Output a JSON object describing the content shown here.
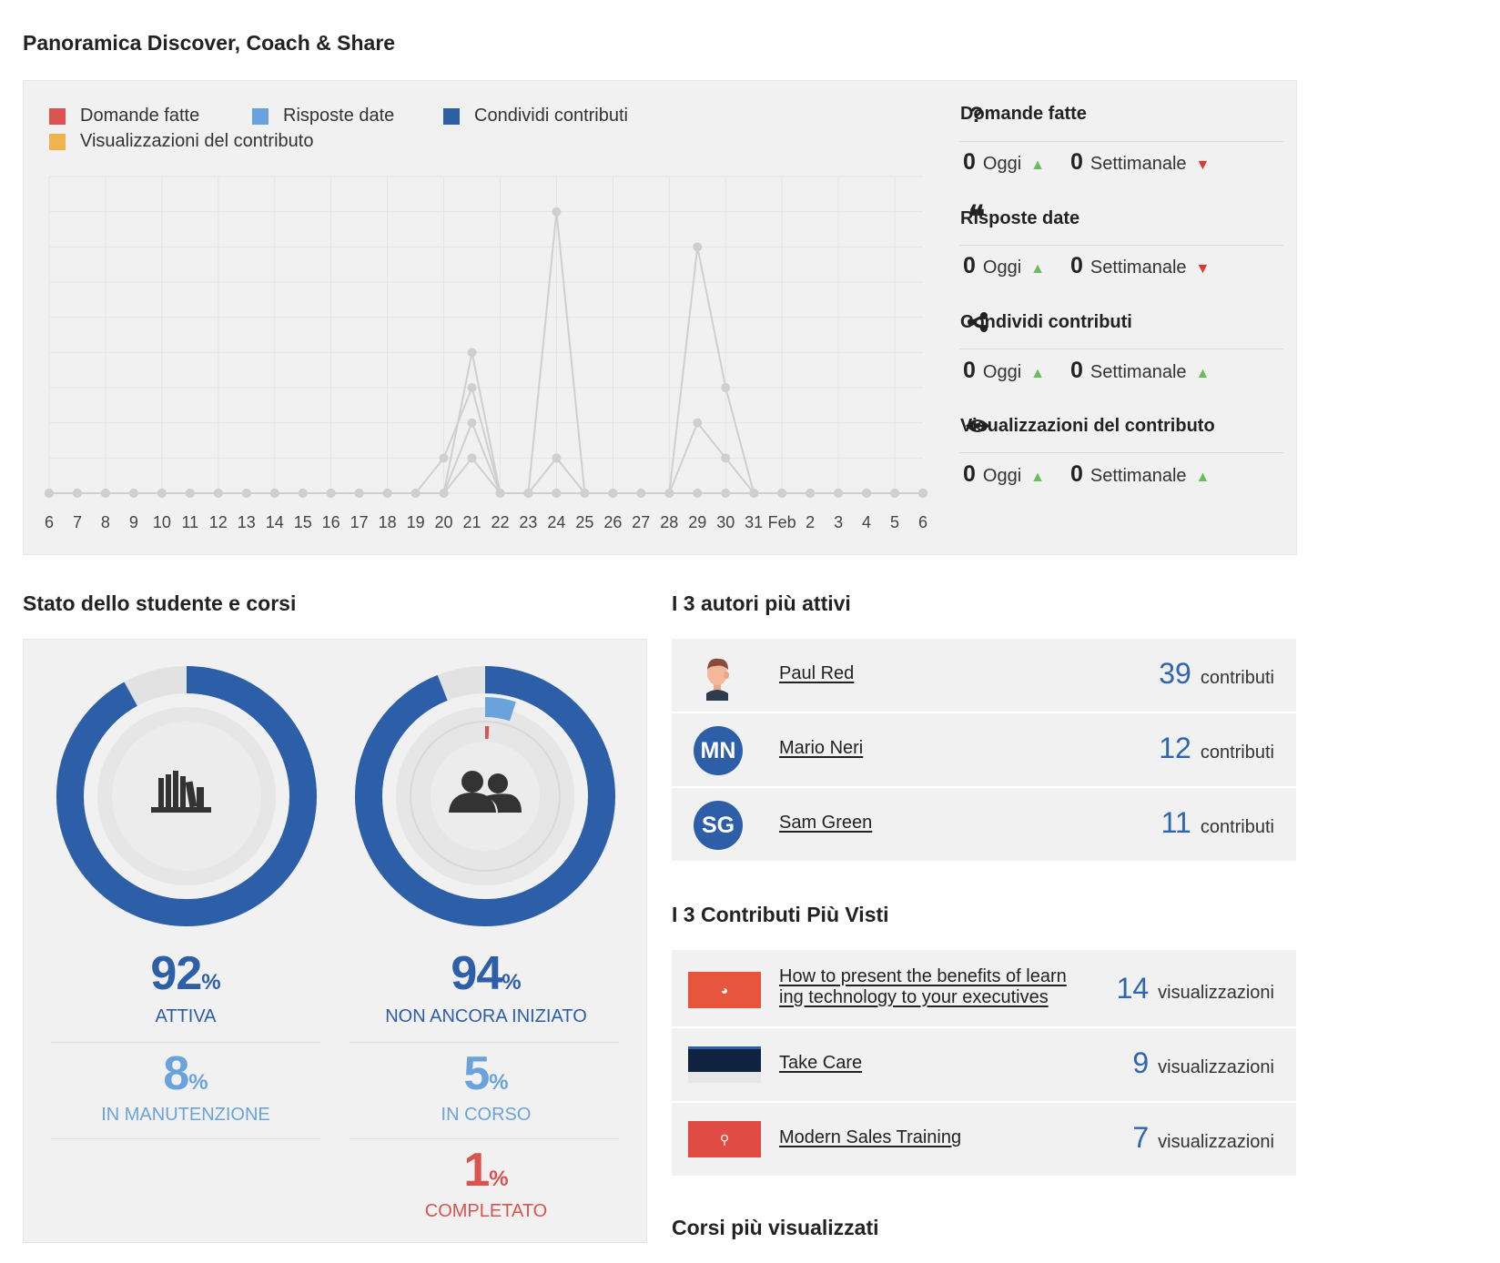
{
  "overview": {
    "title": "Panoramica Discover, Coach & Share",
    "legend": [
      {
        "label": "Domande fatte",
        "color": "#d9534f"
      },
      {
        "label": "Risposte date",
        "color": "#6aa3dc"
      },
      {
        "label": "Condividi contributi",
        "color": "#2c5fa8"
      },
      {
        "label": "Visualizzazioni del contributo",
        "color": "#f0b44d"
      }
    ],
    "stats": [
      {
        "icon": "question-icon",
        "title": "Domande fatte",
        "today": "0",
        "today_label": "Oggi",
        "weekly": "0",
        "weekly_label": "Settimanale",
        "weekly_trend": "down"
      },
      {
        "icon": "quote-icon",
        "title": "Risposte date",
        "today": "0",
        "today_label": "Oggi",
        "weekly": "0",
        "weekly_label": "Settimanale",
        "weekly_trend": "down"
      },
      {
        "icon": "share-icon",
        "title": "Condividi contributi",
        "today": "0",
        "today_label": "Oggi",
        "weekly": "0",
        "weekly_label": "Settimanale",
        "weekly_trend": "up"
      },
      {
        "icon": "eye-icon",
        "title": "Visualizzazioni del contributo",
        "today": "0",
        "today_label": "Oggi",
        "weekly": "0",
        "weekly_label": "Settimanale",
        "weekly_trend": "up"
      }
    ]
  },
  "chart_data": {
    "type": "line",
    "x": [
      "6",
      "7",
      "8",
      "9",
      "10",
      "11",
      "12",
      "13",
      "14",
      "15",
      "16",
      "17",
      "18",
      "19",
      "20",
      "21",
      "22",
      "23",
      "24",
      "25",
      "26",
      "27",
      "28",
      "29",
      "30",
      "31",
      "Feb",
      "2",
      "3",
      "4",
      "5",
      "6"
    ],
    "ylim": [
      0,
      9
    ],
    "grid": true,
    "series": [
      {
        "values": [
          0,
          0,
          0,
          0,
          0,
          0,
          0,
          0,
          0,
          0,
          0,
          0,
          0,
          0,
          0,
          4,
          0,
          0,
          8,
          0,
          0,
          0,
          0,
          7,
          3,
          0,
          0,
          0,
          0,
          0,
          0,
          0
        ]
      },
      {
        "values": [
          0,
          0,
          0,
          0,
          0,
          0,
          0,
          0,
          0,
          0,
          0,
          0,
          0,
          0,
          1,
          3,
          0,
          0,
          1,
          0,
          0,
          0,
          0,
          2,
          1,
          0,
          0,
          0,
          0,
          0,
          0,
          0
        ]
      },
      {
        "values": [
          0,
          0,
          0,
          0,
          0,
          0,
          0,
          0,
          0,
          0,
          0,
          0,
          0,
          0,
          0,
          2,
          0,
          0,
          0,
          0,
          0,
          0,
          0,
          0,
          0,
          0,
          0,
          0,
          0,
          0,
          0,
          0
        ]
      },
      {
        "values": [
          0,
          0,
          0,
          0,
          0,
          0,
          0,
          0,
          0,
          0,
          0,
          0,
          0,
          0,
          0,
          1,
          0,
          0,
          0,
          0,
          0,
          0,
          0,
          0,
          0,
          0,
          0,
          0,
          0,
          0,
          0,
          0
        ]
      }
    ]
  },
  "students": {
    "title": "Stato dello studente e corsi",
    "left": {
      "icon": "books-icon",
      "main_pct": "92",
      "main_label": "ATTIVA",
      "main_color": "#2c5fa8",
      "second_pct": "8",
      "second_label": "IN MANUTENZIONE",
      "second_color": "#6aa3dc"
    },
    "right": {
      "icon": "users-icon",
      "main_pct": "94",
      "main_label": "NON ANCORA INIZIATO",
      "main_color": "#2c5fa8",
      "second_pct": "5",
      "second_label": "IN CORSO",
      "second_color": "#6aa3dc",
      "third_pct": "1",
      "third_label": "COMPLETATO",
      "third_color": "#d9534f"
    },
    "pct_symbol": "%"
  },
  "authors": {
    "title": "I 3 autori più attivi",
    "unit": "contributi",
    "items": [
      {
        "name": "Paul Red",
        "initials": "",
        "count": "39"
      },
      {
        "name": "Mario Neri",
        "initials": "MN",
        "count": "12"
      },
      {
        "name": "Sam Green",
        "initials": "SG",
        "count": "11"
      }
    ]
  },
  "contributions": {
    "title": "I 3 Contributi Più Visti",
    "unit": "visualizzazioni",
    "items": [
      {
        "title_line1": "How to present the benefits of learn",
        "title_line2": "ing technology to your executives",
        "count": "14",
        "thumb": "presentation-icon",
        "thumb_color": "#e8553e"
      },
      {
        "title_line1": "Take Care",
        "title_line2": "",
        "count": "9",
        "thumb": "screenshot-thumb",
        "thumb_color": "#1b3a66"
      },
      {
        "title_line1": "Modern Sales Training",
        "title_line2": "",
        "count": "7",
        "thumb": "pdf-icon",
        "thumb_color": "#e04b43"
      }
    ]
  },
  "courses": {
    "title": "Corsi più visualizzati"
  }
}
